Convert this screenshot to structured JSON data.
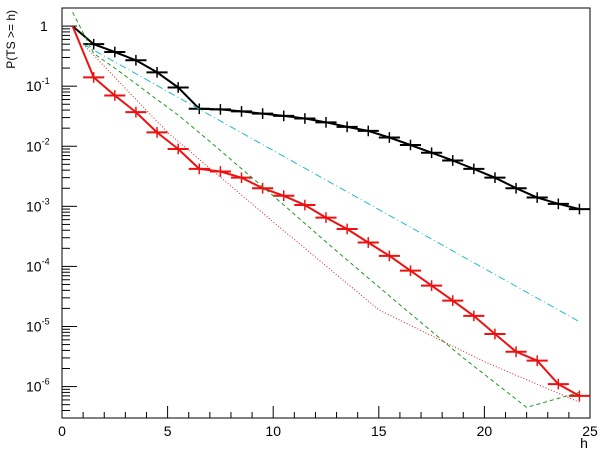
{
  "chart_data": {
    "type": "line",
    "title": "",
    "xlabel": "h",
    "ylabel": "P(TS >= h)",
    "xlim": [
      0,
      25
    ],
    "ylim": [
      3e-07,
      2
    ],
    "yscale": "log",
    "grid": false,
    "x_ticks": [
      0,
      5,
      10,
      15,
      20,
      25
    ],
    "x_tick_labels": [
      "0",
      "5",
      "10",
      "15",
      "20",
      "25"
    ],
    "y_ticks": [
      {
        "value": 1,
        "label": "1"
      },
      {
        "value": 0.1,
        "label": "10",
        "exponent": "-1"
      },
      {
        "value": 0.01,
        "label": "10",
        "exponent": "-2"
      },
      {
        "value": 0.001,
        "label": "10",
        "exponent": "-3"
      },
      {
        "value": 0.0001,
        "label": "10",
        "exponent": "-4"
      },
      {
        "value": 1e-05,
        "label": "10",
        "exponent": "-5"
      },
      {
        "value": 1e-06,
        "label": "10",
        "exponent": "-6"
      }
    ],
    "series": [
      {
        "style": "step-errorbar",
        "color": "#000000",
        "x": [
          0.5,
          1.5,
          2.5,
          3.5,
          4.5,
          5.5,
          6.5,
          7.5,
          8.5,
          9.5,
          10.5,
          11.5,
          12.5,
          13.5,
          14.5,
          15.5,
          16.5,
          17.5,
          18.5,
          19.5,
          20.5,
          21.5,
          22.5,
          23.5,
          24.5
        ],
        "y": [
          1.0,
          0.5,
          0.37,
          0.27,
          0.17,
          0.095,
          0.042,
          0.041,
          0.038,
          0.035,
          0.032,
          0.029,
          0.025,
          0.021,
          0.018,
          0.014,
          0.0105,
          0.0078,
          0.0058,
          0.0042,
          0.003,
          0.002,
          0.0014,
          0.0011,
          0.0009
        ]
      },
      {
        "style": "step-errorbar",
        "color": "#ee1111",
        "x": [
          0.5,
          1.5,
          2.5,
          3.5,
          4.5,
          5.5,
          6.5,
          7.5,
          8.5,
          9.5,
          10.5,
          11.5,
          12.5,
          13.5,
          14.5,
          15.5,
          16.5,
          17.5,
          18.5,
          19.5,
          20.5,
          21.5,
          22.5,
          23.5,
          24.5
        ],
        "y": [
          1.0,
          0.14,
          0.07,
          0.037,
          0.017,
          0.009,
          0.0042,
          0.0038,
          0.003,
          0.002,
          0.0015,
          0.00105,
          0.00065,
          0.00042,
          0.00025,
          0.00015,
          8.5e-05,
          4.8e-05,
          2.7e-05,
          1.5e-05,
          7.5e-06,
          3.8e-06,
          2.7e-06,
          1.1e-06,
          7e-07
        ]
      },
      {
        "style": "dash-dot",
        "color": "#22bbcc",
        "x": [
          1,
          24.5
        ],
        "y": [
          0.5,
          1.2e-05
        ]
      },
      {
        "style": "dashed",
        "color": "#229922",
        "x": [
          0.5,
          1.5,
          2.5,
          3.5,
          4.5,
          5.5,
          7,
          10,
          13,
          16,
          19,
          22,
          24.5
        ],
        "y": [
          1.7,
          0.35,
          0.2,
          0.11,
          0.06,
          0.033,
          0.012,
          0.0015,
          0.00018,
          2.3e-05,
          3e-06,
          4.5e-07,
          8e-07
        ]
      },
      {
        "style": "dotted",
        "color": "#dd2222",
        "x": [
          1,
          5,
          10,
          15,
          20,
          24.5
        ],
        "y": [
          0.5,
          0.017,
          0.00055,
          1.9e-05,
          2.6e-06,
          5.5e-07
        ]
      }
    ]
  }
}
